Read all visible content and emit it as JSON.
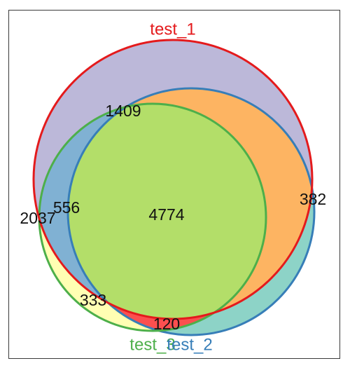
{
  "sets": [
    {
      "name": "test_1",
      "color": "#e41a1c"
    },
    {
      "name": "test_2",
      "color": "#377eb8"
    },
    {
      "name": "test_3",
      "color": "#4daf4a"
    }
  ],
  "regions": {
    "test_1_only": "2037",
    "test_1_test_2": "1409",
    "test_1_test_3": "556",
    "test_1_test_2_test_3": "4774",
    "test_2_only": "382",
    "test_3_only": "333",
    "test_2_test_3": "120"
  },
  "region_colors": {
    "test_1_only": "#bcb8d9",
    "test_1_test_2": "#fdb462",
    "test_1_test_3": "#80b1d3",
    "test_1_test_2_test_3": "#b3de69",
    "test_2_only": "#8dd3c7",
    "test_3_only": "#ffffb3",
    "test_2_test_3": "#fb4f4f"
  }
}
